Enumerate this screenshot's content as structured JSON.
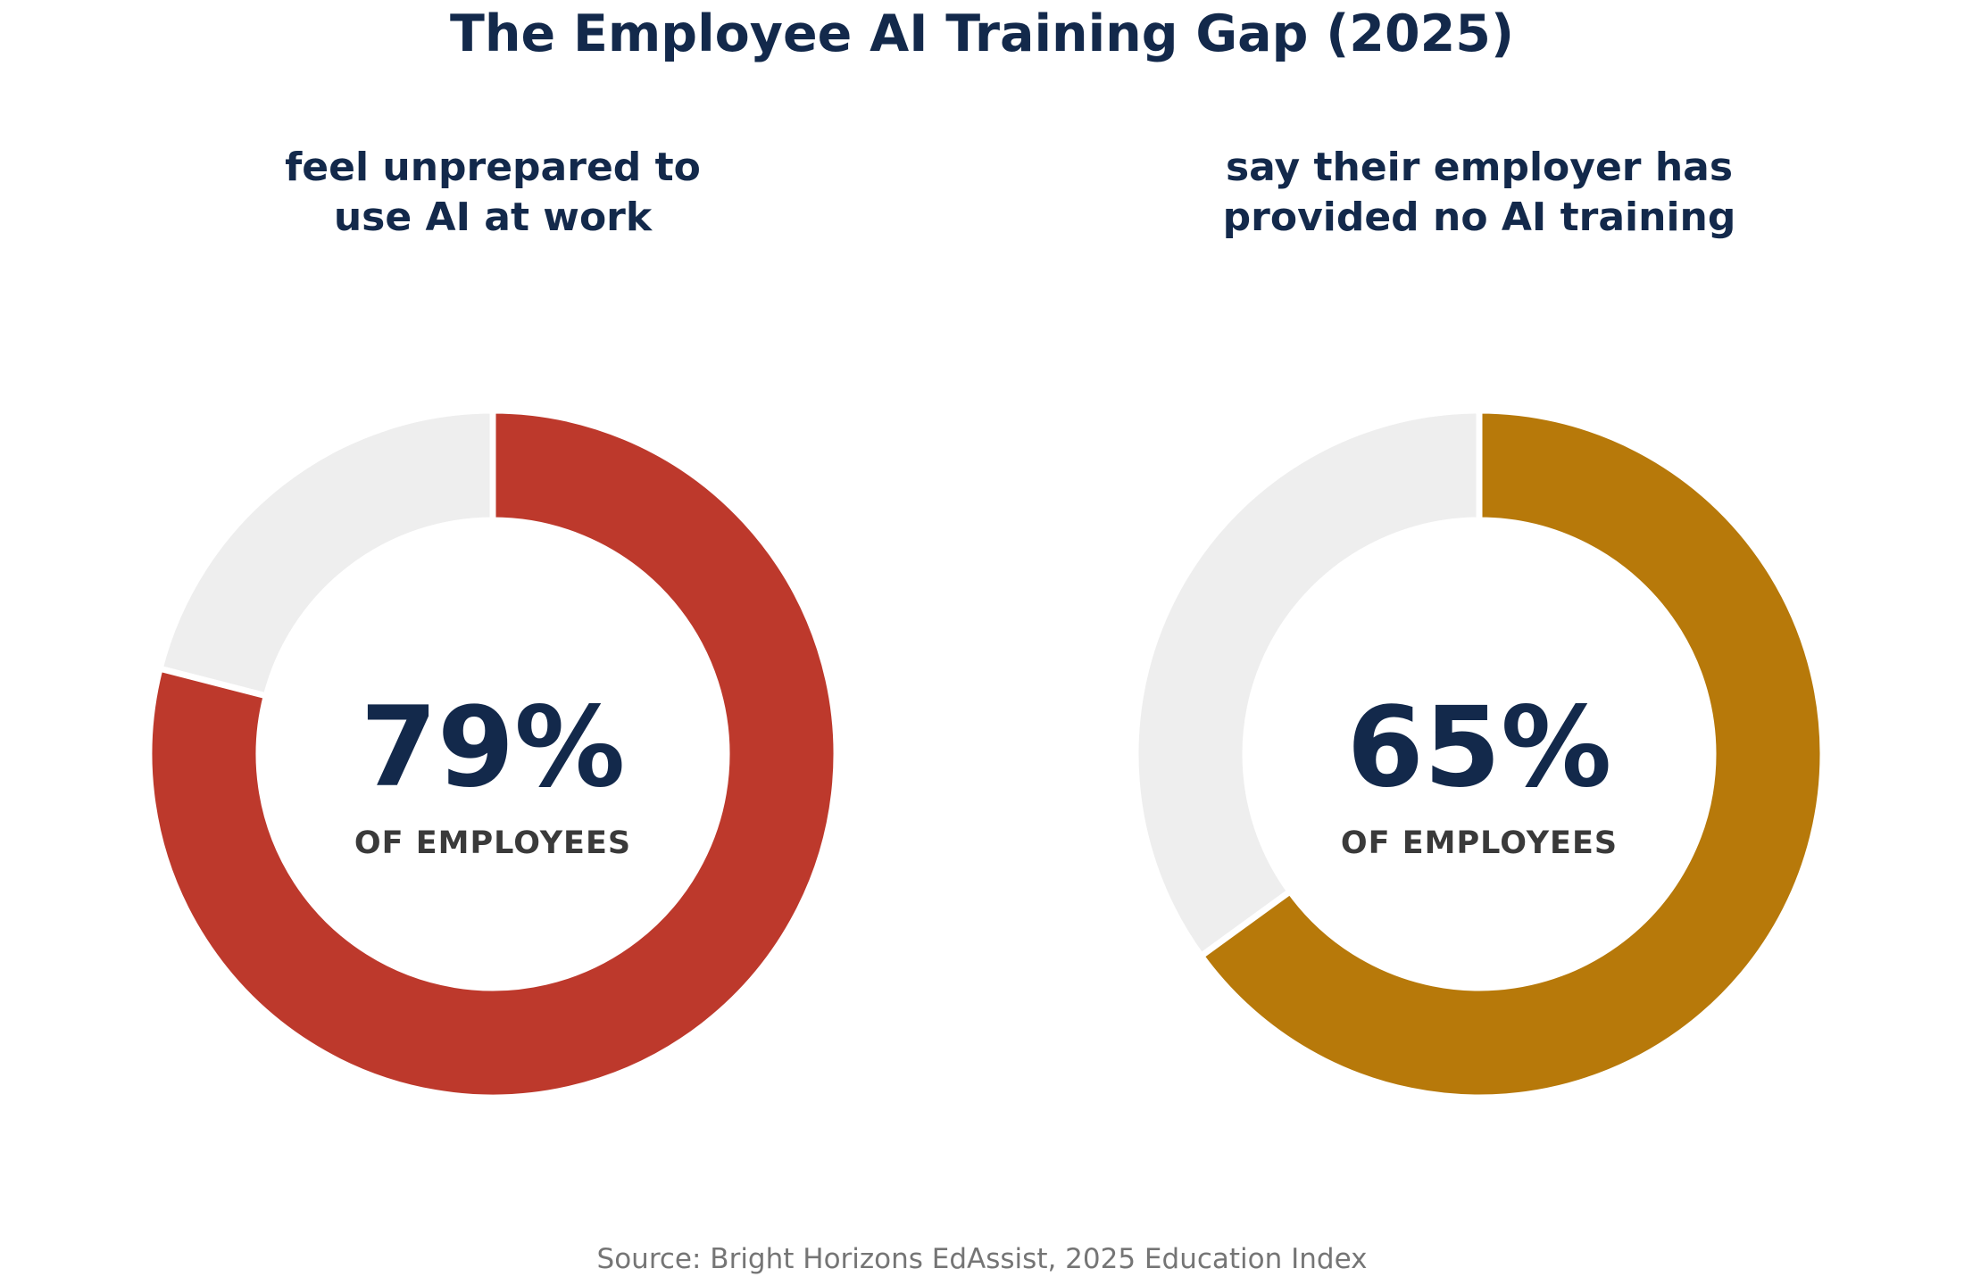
{
  "title": "The Employee AI Training Gap (2025)",
  "source": "Source: Bright Horizons EdAssist, 2025 Education Index",
  "chart_data": [
    {
      "type": "pie",
      "subtitle_lines": [
        "feel unprepared to",
        "use AI at work"
      ],
      "value": 79,
      "value_label": "79%",
      "center_label": "OF EMPLOYEES",
      "color": "#bd392c",
      "remainder_color": "#eeeeee"
    },
    {
      "type": "pie",
      "subtitle_lines": [
        "say their employer has",
        "provided no AI training"
      ],
      "value": 65,
      "value_label": "65%",
      "center_label": "OF EMPLOYEES",
      "color": "#b7790a",
      "remainder_color": "#eeeeee"
    }
  ]
}
